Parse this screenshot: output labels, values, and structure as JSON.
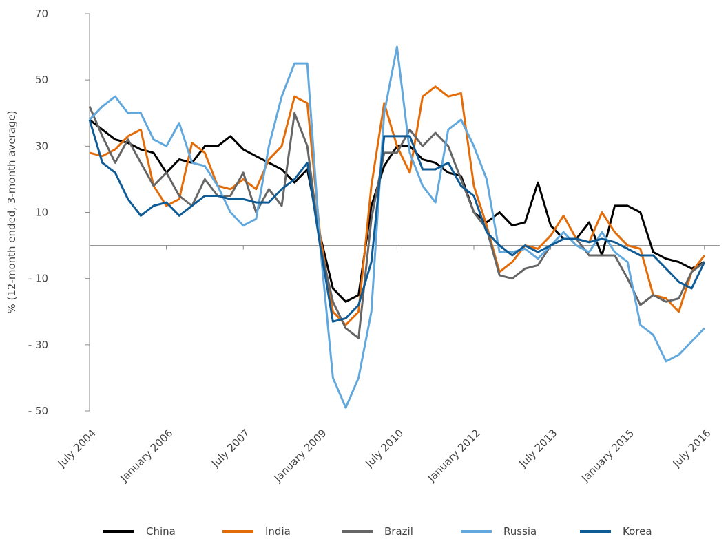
{
  "chart_data": {
    "type": "line",
    "y_label": "% (12-month ended, 3-month average)",
    "x": [
      "2004-07",
      "2004-10",
      "2005-01",
      "2005-04",
      "2005-07",
      "2005-10",
      "2006-01",
      "2006-04",
      "2006-07",
      "2006-10",
      "2007-01",
      "2007-04",
      "2007-07",
      "2007-10",
      "2008-01",
      "2008-04",
      "2008-07",
      "2008-10",
      "2009-01",
      "2009-04",
      "2009-07",
      "2009-10",
      "2010-01",
      "2010-04",
      "2010-07",
      "2010-10",
      "2011-01",
      "2011-04",
      "2011-07",
      "2011-10",
      "2012-01",
      "2012-04",
      "2012-07",
      "2012-10",
      "2013-01",
      "2013-04",
      "2013-07",
      "2013-10",
      "2014-01",
      "2014-04",
      "2014-07",
      "2014-10",
      "2015-01",
      "2015-04",
      "2015-07",
      "2015-10",
      "2016-01",
      "2016-04",
      "2016-07"
    ],
    "xticks": [
      {
        "value": "2004-07",
        "label": "July 2004"
      },
      {
        "value": "2006-01",
        "label": "January 2006"
      },
      {
        "value": "2007-07",
        "label": "July 2007"
      },
      {
        "value": "2009-01",
        "label": "January 2009"
      },
      {
        "value": "2010-07",
        "label": "July 2010"
      },
      {
        "value": "2012-01",
        "label": "January 2012"
      },
      {
        "value": "2013-07",
        "label": "July 2013"
      },
      {
        "value": "2015-01",
        "label": "January 2015"
      },
      {
        "value": "2016-07",
        "label": "July 2016"
      }
    ],
    "ylim": [
      -50,
      70
    ],
    "yticks": [
      {
        "value": -50,
        "label": "- 50"
      },
      {
        "value": -30,
        "label": "- 30"
      },
      {
        "value": -10,
        "label": "- 10"
      },
      10,
      30,
      50,
      70
    ],
    "series": [
      {
        "name": "China",
        "color": "#000000",
        "values": [
          38,
          35,
          32,
          31,
          29,
          28,
          22,
          26,
          25,
          30,
          30,
          33,
          29,
          27,
          25,
          23,
          19,
          23,
          3,
          -13,
          -17,
          -15,
          12,
          24,
          30,
          30,
          26,
          25,
          22,
          21,
          10,
          7,
          10,
          6,
          7,
          19,
          6,
          2,
          2,
          7,
          -3,
          12,
          12,
          10,
          -2,
          -4,
          -5,
          -7,
          -5
        ]
      },
      {
        "name": "India",
        "color": "#e36c09",
        "values": [
          28,
          27,
          29,
          33,
          35,
          18,
          12,
          14,
          31,
          28,
          18,
          17,
          20,
          17,
          26,
          30,
          45,
          43,
          3,
          -20,
          -24,
          -20,
          18,
          43,
          30,
          22,
          45,
          48,
          45,
          46,
          18,
          6,
          -8,
          -5,
          0,
          -1,
          3,
          9,
          2,
          1,
          10,
          4,
          0,
          -1,
          -15,
          -16,
          -20,
          -8,
          -3
        ]
      },
      {
        "name": "Brazil",
        "color": "#666666",
        "values": [
          42,
          33,
          25,
          32,
          25,
          18,
          22,
          15,
          12,
          20,
          15,
          15,
          22,
          10,
          17,
          12,
          40,
          30,
          0,
          -17,
          -25,
          -28,
          8,
          28,
          28,
          35,
          30,
          34,
          30,
          20,
          10,
          5,
          -9,
          -10,
          -7,
          -6,
          0,
          2,
          2,
          -3,
          -3,
          -3,
          -10,
          -18,
          -15,
          -17,
          -16,
          -8,
          -5
        ]
      },
      {
        "name": "Russia",
        "color": "#62a8dc",
        "values": [
          38,
          42,
          45,
          40,
          40,
          32,
          30,
          37,
          25,
          24,
          18,
          10,
          6,
          8,
          30,
          45,
          55,
          55,
          0,
          -40,
          -49,
          -40,
          -20,
          40,
          60,
          28,
          18,
          13,
          35,
          38,
          30,
          20,
          -2,
          -2,
          -1,
          -4,
          0,
          4,
          0,
          -2,
          4,
          -2,
          -5,
          -24,
          -27,
          -35,
          -33,
          -29,
          -25
        ]
      },
      {
        "name": "Korea",
        "color": "#0f5b96",
        "values": [
          38,
          25,
          22,
          14,
          9,
          12,
          13,
          9,
          12,
          15,
          15,
          14,
          14,
          13,
          13,
          17,
          20,
          25,
          0,
          -23,
          -22,
          -18,
          -5,
          33,
          33,
          33,
          23,
          23,
          25,
          18,
          15,
          4,
          0,
          -3,
          0,
          -2,
          0,
          2,
          2,
          1,
          2,
          1,
          -1,
          -3,
          -3,
          -7,
          -11,
          -13,
          -5
        ]
      }
    ]
  }
}
